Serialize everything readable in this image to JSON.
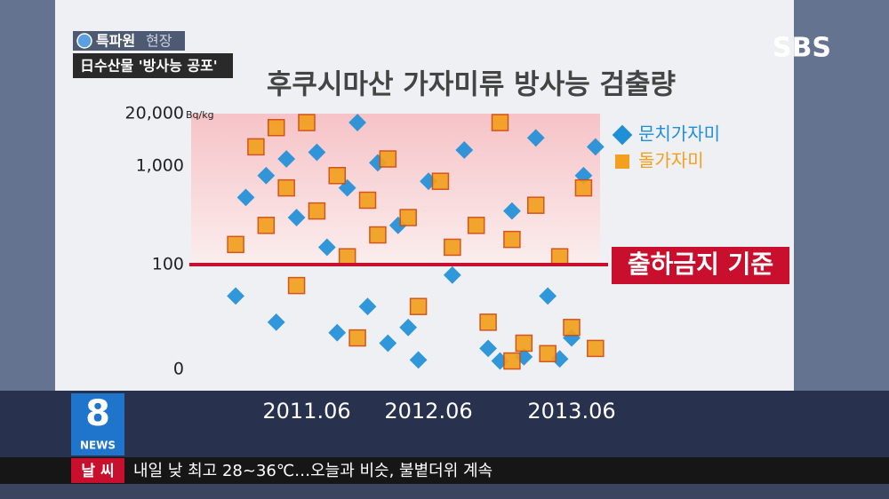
{
  "broadcast": {
    "channel": "SBS",
    "segment": "특파원",
    "segment_sub": "현장",
    "headline": "日수산물 '방사능 공포'",
    "logo_number": "8",
    "logo_text": "NEWS",
    "ticker_tag": "날 씨",
    "ticker_text": "내일 낮 최고 28~36℃…오늘과 비슷, 불볕더위 계속"
  },
  "chart_data": {
    "type": "scatter",
    "title": "후쿠시마산 가자미류 방사능 검출량",
    "y_unit": "Bq/kg",
    "log_scale": true,
    "xticks": [
      2011.06,
      2012.06,
      2013.06
    ],
    "yticks": [
      0,
      100,
      {
        "value": 1000,
        "label": "1,000"
      },
      {
        "value": 20000,
        "label": "20,000"
      }
    ],
    "threshold": {
      "value": 100,
      "label": "출하금지 기준",
      "color": "#c8102e"
    },
    "series": [
      {
        "name": "문치가자미",
        "color": "#1f8fd8",
        "marker": "diamond",
        "x": [
          2010.12,
          2011.02,
          2011.04,
          2011.05,
          2011.07,
          2011.08,
          2011.1,
          2011.12,
          2012.01,
          2012.03,
          2012.04,
          2012.06,
          2012.08,
          2012.09,
          2012.11,
          2013.01,
          2013.02,
          2013.03,
          2013.04,
          2013.06,
          2013.07,
          2011.03,
          2011.09,
          2012.02,
          2012.12,
          2013.05,
          2013.08,
          2011.11,
          2012.05,
          2010.11
        ],
        "values": [
          480,
          800,
          1500,
          300,
          2200,
          150,
          600,
          60,
          1200,
          250,
          40,
          700,
          90,
          2500,
          20,
          350,
          12,
          5000,
          70,
          30,
          800,
          45,
          35,
          25,
          8,
          10,
          3000,
          12000,
          9,
          70
        ]
      },
      {
        "name": "돌가자미",
        "color": "#f2a01e",
        "marker": "square",
        "x": [
          2010.11,
          2011.01,
          2011.02,
          2011.04,
          2011.06,
          2011.07,
          2011.09,
          2011.1,
          2011.12,
          2012.01,
          2012.02,
          2012.04,
          2012.05,
          2012.07,
          2012.08,
          2012.1,
          2012.11,
          2013.01,
          2013.02,
          2013.03,
          2013.04,
          2013.05,
          2013.06,
          2013.07,
          2013.08,
          2012.12,
          2011.05,
          2011.11,
          2013.01,
          2011.03
        ],
        "values": [
          160,
          3000,
          250,
          600,
          12000,
          350,
          800,
          120,
          450,
          200,
          1500,
          300,
          60,
          700,
          150,
          250,
          45,
          180,
          25,
          400,
          15,
          120,
          40,
          600,
          20,
          12000,
          80,
          30,
          8,
          9000
        ]
      }
    ]
  }
}
